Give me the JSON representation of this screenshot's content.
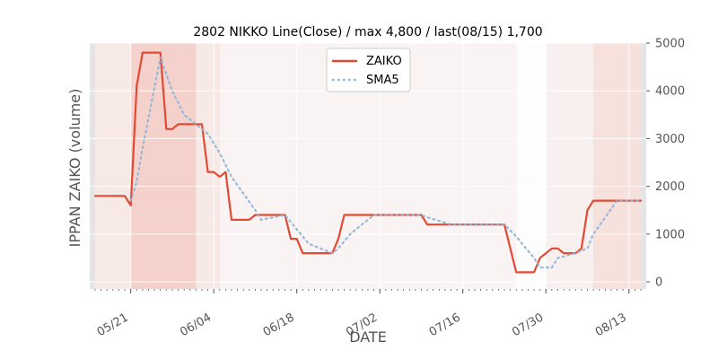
{
  "chart_data": {
    "type": "line",
    "title": "2802 NIKKO Line(Close) / max 4,800 / last(08/15) 1,700",
    "xlabel": "DATE",
    "ylabel": "IPPAN ZAIKO (volume)",
    "ylim": [
      -150,
      5000
    ],
    "y_ticks": [
      0,
      1000,
      2000,
      3000,
      4000,
      5000
    ],
    "y_tick_labels": [
      "0",
      "1000",
      "2000",
      "3000",
      "4000",
      "5000"
    ],
    "y_axis_side": "right",
    "x_start": "05/15",
    "x_end": "08/15",
    "x_tick_labels": [
      "05/21",
      "06/04",
      "06/18",
      "07/02",
      "07/16",
      "07/30",
      "08/13"
    ],
    "grid": true,
    "legend_position": "top-center",
    "colors": {
      "zaiko": "#e24a33",
      "sma5": "#8eb4d6",
      "axes_bg": "#e5e5e5",
      "shade": "#f2a596"
    },
    "series": [
      {
        "name": "ZAIKO",
        "style": "solid",
        "points": [
          [
            "05/15",
            1800
          ],
          [
            "05/20",
            1800
          ],
          [
            "05/21",
            1600
          ],
          [
            "05/22",
            4100
          ],
          [
            "05/23",
            4800
          ],
          [
            "05/26",
            4800
          ],
          [
            "05/27",
            3200
          ],
          [
            "05/28",
            3200
          ],
          [
            "05/29",
            3300
          ],
          [
            "06/02",
            3300
          ],
          [
            "06/03",
            2300
          ],
          [
            "06/04",
            2300
          ],
          [
            "06/05",
            2200
          ],
          [
            "06/06",
            2300
          ],
          [
            "06/07",
            1300
          ],
          [
            "06/10",
            1300
          ],
          [
            "06/11",
            1400
          ],
          [
            "06/16",
            1400
          ],
          [
            "06/17",
            900
          ],
          [
            "06/18",
            900
          ],
          [
            "06/19",
            600
          ],
          [
            "06/24",
            600
          ],
          [
            "06/25",
            900
          ],
          [
            "06/26",
            1400
          ],
          [
            "07/09",
            1400
          ],
          [
            "07/10",
            1200
          ],
          [
            "07/23",
            1200
          ],
          [
            "07/24",
            700
          ],
          [
            "07/25",
            200
          ],
          [
            "07/28",
            200
          ],
          [
            "07/29",
            500
          ],
          [
            "07/31",
            700
          ],
          [
            "08/01",
            700
          ],
          [
            "08/02",
            600
          ],
          [
            "08/04",
            600
          ],
          [
            "08/05",
            700
          ],
          [
            "08/06",
            1500
          ],
          [
            "08/07",
            1700
          ],
          [
            "08/15",
            1700
          ]
        ]
      },
      {
        "name": "SMA5",
        "style": "dotted",
        "points": [
          [
            "05/21",
            1700
          ],
          [
            "05/22",
            2100
          ],
          [
            "05/23",
            2800
          ],
          [
            "05/26",
            4700
          ],
          [
            "05/28",
            4000
          ],
          [
            "05/30",
            3500
          ],
          [
            "06/03",
            3100
          ],
          [
            "06/05",
            2700
          ],
          [
            "06/07",
            2200
          ],
          [
            "06/11",
            1500
          ],
          [
            "06/12",
            1300
          ],
          [
            "06/16",
            1400
          ],
          [
            "06/18",
            1100
          ],
          [
            "06/20",
            800
          ],
          [
            "06/24",
            600
          ],
          [
            "06/25",
            700
          ],
          [
            "06/27",
            1000
          ],
          [
            "07/01",
            1400
          ],
          [
            "07/09",
            1400
          ],
          [
            "07/10",
            1350
          ],
          [
            "07/14",
            1200
          ],
          [
            "07/23",
            1200
          ],
          [
            "07/25",
            950
          ],
          [
            "07/28",
            500
          ],
          [
            "07/29",
            300
          ],
          [
            "07/31",
            300
          ],
          [
            "08/01",
            500
          ],
          [
            "08/04",
            600
          ],
          [
            "08/06",
            700
          ],
          [
            "08/07",
            1000
          ],
          [
            "08/11",
            1700
          ],
          [
            "08/15",
            1700
          ]
        ]
      }
    ],
    "shaded_ranges": [
      {
        "start": "05/15",
        "end": "05/21",
        "intensity": 0.45
      },
      {
        "start": "05/21",
        "end": "06/01",
        "intensity": 0.7
      },
      {
        "start": "06/01",
        "end": "06/05",
        "intensity": 0.45
      },
      {
        "start": "06/05",
        "end": "07/25",
        "intensity": 0.28
      },
      {
        "start": "07/25",
        "end": "07/30",
        "intensity": 0.08
      },
      {
        "start": "07/30",
        "end": "08/07",
        "intensity": 0.35
      },
      {
        "start": "08/07",
        "end": "08/15",
        "intensity": 0.55
      }
    ]
  }
}
